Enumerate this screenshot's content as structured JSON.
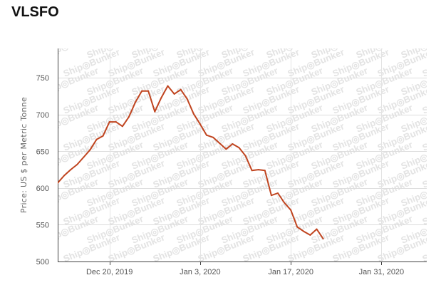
{
  "title": "VLSFO",
  "watermark_text": "Ship◎Bunker",
  "chart_data": {
    "type": "line",
    "title": "VLSFO",
    "ylabel": "Price: US $ per Metric Tonne",
    "xlabel": "",
    "ylim": [
      500,
      790
    ],
    "xlim": [
      "2019-12-12",
      "2020-02-07"
    ],
    "y_ticks": [
      500,
      550,
      600,
      650,
      700,
      750
    ],
    "x_ticks": [
      {
        "date": "2019-12-20",
        "label": "Dec 20, 2019"
      },
      {
        "date": "2020-01-03",
        "label": "Jan 3, 2020"
      },
      {
        "date": "2020-01-17",
        "label": "Jan 17, 2020"
      },
      {
        "date": "2020-01-31",
        "label": "Jan 31, 2020"
      }
    ],
    "grid": "horizontal",
    "color": "#c0441f",
    "series": [
      {
        "points": [
          [
            "2019-12-12",
            607
          ],
          [
            "2019-12-13",
            617
          ],
          [
            "2019-12-14",
            625
          ],
          [
            "2019-12-15",
            632
          ],
          [
            "2019-12-16",
            642
          ],
          [
            "2019-12-17",
            652
          ],
          [
            "2019-12-18",
            666
          ],
          [
            "2019-12-19",
            671
          ],
          [
            "2019-12-20",
            690
          ],
          [
            "2019-12-21",
            690
          ],
          [
            "2019-12-22",
            684
          ],
          [
            "2019-12-23",
            697
          ],
          [
            "2019-12-24",
            717
          ],
          [
            "2019-12-25",
            732
          ],
          [
            "2019-12-26",
            732
          ],
          [
            "2019-12-27",
            704
          ],
          [
            "2019-12-28",
            723
          ],
          [
            "2019-12-29",
            739
          ],
          [
            "2019-12-30",
            728
          ],
          [
            "2019-12-31",
            734
          ],
          [
            "2020-01-01",
            721
          ],
          [
            "2020-01-02",
            701
          ],
          [
            "2020-01-03",
            687
          ],
          [
            "2020-01-04",
            672
          ],
          [
            "2020-01-05",
            669
          ],
          [
            "2020-01-06",
            661
          ],
          [
            "2020-01-07",
            653
          ],
          [
            "2020-01-08",
            660
          ],
          [
            "2020-01-09",
            655
          ],
          [
            "2020-01-10",
            644
          ],
          [
            "2020-01-11",
            624
          ],
          [
            "2020-01-12",
            625
          ],
          [
            "2020-01-13",
            624
          ],
          [
            "2020-01-14",
            590
          ],
          [
            "2020-01-15",
            593
          ],
          [
            "2020-01-16",
            580
          ],
          [
            "2020-01-17",
            570
          ],
          [
            "2020-01-18",
            547
          ],
          [
            "2020-01-19",
            541
          ],
          [
            "2020-01-20",
            536
          ],
          [
            "2020-01-21",
            544
          ],
          [
            "2020-01-22",
            531
          ]
        ]
      }
    ]
  }
}
